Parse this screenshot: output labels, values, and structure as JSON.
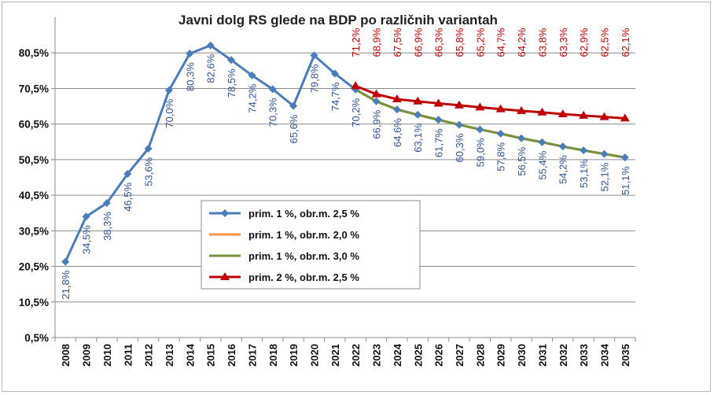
{
  "chart_data": {
    "type": "line",
    "title": "Javni dolg RS glede na BDP po različnih variantah",
    "xlabel": "",
    "ylabel": "",
    "ylim": [
      0.5,
      90.5
    ],
    "yticks": [
      "0,5%",
      "10,5%",
      "20,5%",
      "30,5%",
      "40,5%",
      "50,5%",
      "60,5%",
      "70,5%",
      "80,5%"
    ],
    "ytick_values": [
      0.5,
      10.5,
      20.5,
      30.5,
      40.5,
      50.5,
      60.5,
      70.5,
      80.5
    ],
    "categories": [
      "2008",
      "2009",
      "2010",
      "2011",
      "2012",
      "2013",
      "2014",
      "2015",
      "2016",
      "2017",
      "2018",
      "2019",
      "2020",
      "2021",
      "2022",
      "2023",
      "2024",
      "2025",
      "2026",
      "2027",
      "2028",
      "2029",
      "2030",
      "2031",
      "2032",
      "2033",
      "2034",
      "2035"
    ],
    "grid": true,
    "legend_position": "center-left",
    "series": [
      {
        "name": "prim. 1 %, obr.m. 2,5 %",
        "color": "#4a7ebb",
        "marker": "diamond",
        "values": [
          21.8,
          34.5,
          38.3,
          46.5,
          53.6,
          70.0,
          80.3,
          82.6,
          78.5,
          74.2,
          70.3,
          65.6,
          79.8,
          74.7,
          70.2,
          66.9,
          64.6,
          63.1,
          61.7,
          60.3,
          59.0,
          57.8,
          56.5,
          55.4,
          54.2,
          53.1,
          52.1,
          51.1
        ],
        "labels": [
          "21,8%",
          "34,5%",
          "38,3%",
          "46,5%",
          "53,6%",
          "70,0%",
          "80,3%",
          "82,6%",
          "78,5%",
          "74,2%",
          "70,3%",
          "65,6%",
          "79,8%",
          "74,7%",
          "70,2%",
          "66,9%",
          "64,6%",
          "63,1%",
          "61,7%",
          "60,3%",
          "59,0%",
          "57,8%",
          "56,5%",
          "55,4%",
          "54,2%",
          "53,1%",
          "52,1%",
          "51,1%"
        ]
      },
      {
        "name": "prim. 1 %, obr.m. 2,0 %",
        "color": "#f79646",
        "marker": "none",
        "values": [
          null,
          null,
          null,
          null,
          null,
          null,
          null,
          null,
          null,
          null,
          null,
          null,
          null,
          null,
          70.2,
          66.9,
          64.6,
          63.1,
          61.7,
          60.3,
          59.0,
          57.8,
          56.5,
          55.4,
          54.2,
          53.1,
          52.1,
          51.1
        ]
      },
      {
        "name": "prim. 1 %, obr.m. 3,0 %",
        "color": "#77933c",
        "marker": "none",
        "values": [
          null,
          null,
          null,
          null,
          null,
          null,
          null,
          null,
          null,
          null,
          null,
          null,
          null,
          null,
          70.2,
          66.9,
          64.6,
          63.1,
          61.7,
          60.3,
          59.0,
          57.8,
          56.5,
          55.4,
          54.2,
          53.1,
          52.1,
          51.1
        ]
      },
      {
        "name": "prim. 2 %, obr.m. 2,5 %",
        "color": "#c00000",
        "marker": "triangle",
        "values": [
          null,
          null,
          null,
          null,
          null,
          null,
          null,
          null,
          null,
          null,
          null,
          null,
          null,
          null,
          71.2,
          68.9,
          67.5,
          66.9,
          66.3,
          65.8,
          65.2,
          64.7,
          64.2,
          63.8,
          63.3,
          62.9,
          62.5,
          62.1
        ],
        "labels": [
          "",
          "",
          "",
          "",
          "",
          "",
          "",
          "",
          "",
          "",
          "",
          "",
          "",
          "",
          "71,2%",
          "68,9%",
          "67,5%",
          "66,9%",
          "66,3%",
          "65,8%",
          "65,2%",
          "64,7%",
          "64,2%",
          "63,8%",
          "63,3%",
          "62,9%",
          "62,5%",
          "62,1%"
        ]
      }
    ]
  }
}
